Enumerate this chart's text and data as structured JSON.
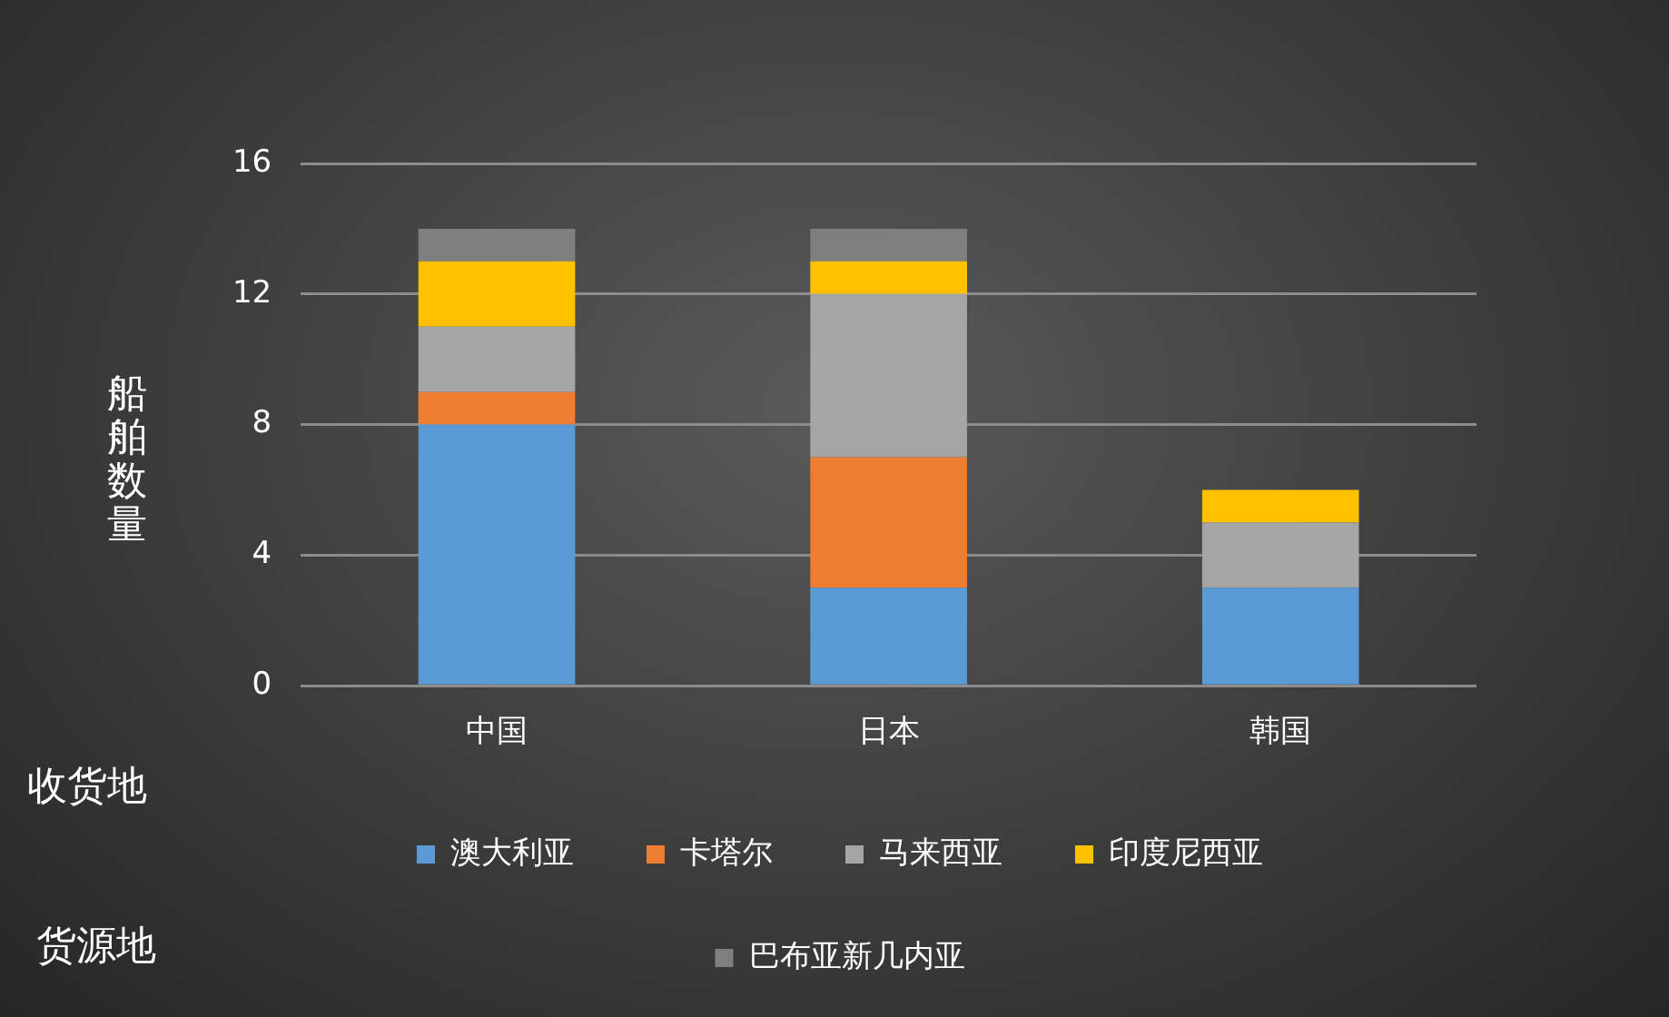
{
  "chart_data": {
    "type": "bar",
    "stacked": true,
    "ylabel": "船舶数量",
    "legend_title": "货源地",
    "annotations": [
      "收货地"
    ],
    "categories": [
      "中国",
      "日本",
      "韩国"
    ],
    "series": [
      {
        "name": "澳大利亚",
        "color": "#5b9bd5",
        "values": [
          8,
          3,
          3
        ]
      },
      {
        "name": "卡塔尔",
        "color": "#ed7d31",
        "values": [
          1,
          4,
          0
        ]
      },
      {
        "name": "马来西亚",
        "color": "#a5a5a5",
        "values": [
          2,
          5,
          2
        ]
      },
      {
        "name": "印度尼西亚",
        "color": "#ffc000",
        "values": [
          2,
          1,
          1
        ]
      },
      {
        "name": "巴布亚新几内亚",
        "color": "#7f7f7f",
        "values": [
          1,
          1,
          0
        ]
      }
    ],
    "ylim": [
      0,
      16
    ],
    "yticks": [
      0,
      4,
      8,
      12,
      16
    ],
    "grid": "y",
    "legend": "bottom"
  }
}
